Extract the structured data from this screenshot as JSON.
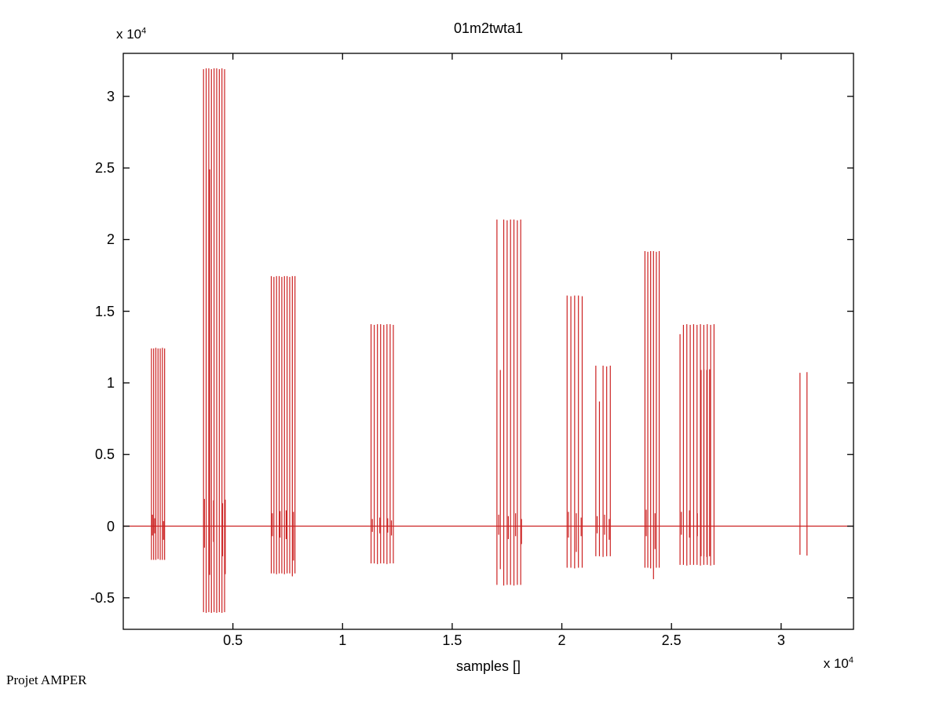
{
  "figure": {
    "background": "#ffffff",
    "footer_text": "Projet AMPER"
  },
  "chart_data": {
    "type": "line",
    "subtype": "waveform-spike-train",
    "title": "01m2twta1",
    "xlabel": "samples []",
    "ylabel": "",
    "x_scale_label": {
      "base": "x 10",
      "exp": "4"
    },
    "y_scale_label": {
      "base": "x 10",
      "exp": "4"
    },
    "xlim": [
      0,
      33300
    ],
    "ylim": [
      -7200,
      33000
    ],
    "xticks": {
      "values": [
        5000,
        10000,
        15000,
        20000,
        25000,
        30000
      ],
      "labels": [
        "0.5",
        "1",
        "1.5",
        "2",
        "2.5",
        "3"
      ]
    },
    "yticks": {
      "values": [
        -5000,
        0,
        5000,
        10000,
        15000,
        20000,
        25000,
        30000
      ],
      "labels": [
        "-0.5",
        "0",
        "0.5",
        "1",
        "1.5",
        "2",
        "2.5",
        "3"
      ]
    },
    "grid": false,
    "box": true,
    "legend": null,
    "line_color": "#cc2222",
    "axis_color": "#000000",
    "baseline_y": 0,
    "spikes_format": "[x_sample, y_max, y_min]",
    "spikes": [
      [
        1285,
        12400,
        -2350
      ],
      [
        1385,
        12400,
        -2350
      ],
      [
        1485,
        12450,
        -2350
      ],
      [
        1585,
        12400,
        -2300
      ],
      [
        1685,
        12400,
        -2350
      ],
      [
        1785,
        12450,
        -2350
      ],
      [
        1885,
        12400,
        -2350
      ],
      [
        1330,
        800,
        -650
      ],
      [
        1430,
        550,
        -500
      ],
      [
        1835,
        350,
        -950
      ],
      [
        3660,
        31900,
        -6000
      ],
      [
        3780,
        31950,
        -6050
      ],
      [
        3900,
        31950,
        -6000
      ],
      [
        4020,
        31900,
        -6050
      ],
      [
        4140,
        31950,
        -6000
      ],
      [
        4260,
        31950,
        -6050
      ],
      [
        4380,
        31900,
        -6000
      ],
      [
        4500,
        31950,
        -6050
      ],
      [
        4620,
        31900,
        -6000
      ],
      [
        3940,
        24900,
        -3400
      ],
      [
        3700,
        1900,
        -1500
      ],
      [
        4120,
        1800,
        -1100
      ],
      [
        4530,
        1600,
        -2100
      ],
      [
        4650,
        1850,
        -3350
      ],
      [
        6750,
        17450,
        -3300
      ],
      [
        6870,
        17400,
        -3300
      ],
      [
        6990,
        17450,
        -3350
      ],
      [
        7110,
        17450,
        -3300
      ],
      [
        7230,
        17400,
        -3300
      ],
      [
        7350,
        17450,
        -3350
      ],
      [
        7470,
        17450,
        -3300
      ],
      [
        7590,
        17400,
        -3300
      ],
      [
        7710,
        17450,
        -3500
      ],
      [
        7830,
        17450,
        -3300
      ],
      [
        6800,
        900,
        -700
      ],
      [
        7150,
        1050,
        -800
      ],
      [
        7430,
        1100,
        -900
      ],
      [
        7760,
        1000,
        -2400
      ],
      [
        11300,
        14100,
        -2600
      ],
      [
        11445,
        14050,
        -2600
      ],
      [
        11590,
        14100,
        -2650
      ],
      [
        11735,
        14100,
        -2600
      ],
      [
        11880,
        14050,
        -2600
      ],
      [
        12025,
        14100,
        -2650
      ],
      [
        12170,
        14100,
        -2600
      ],
      [
        12315,
        14050,
        -2600
      ],
      [
        11360,
        500,
        -400
      ],
      [
        11700,
        600,
        -500
      ],
      [
        12060,
        550,
        -450
      ],
      [
        12230,
        400,
        -650
      ],
      [
        17040,
        21400,
        -4100
      ],
      [
        17195,
        10900,
        -3000
      ],
      [
        17350,
        21400,
        -4150
      ],
      [
        17505,
        21350,
        -4100
      ],
      [
        17660,
        21400,
        -4100
      ],
      [
        17815,
        21400,
        -4150
      ],
      [
        17970,
        21350,
        -4100
      ],
      [
        18125,
        21400,
        -4100
      ],
      [
        17120,
        800,
        -600
      ],
      [
        17560,
        700,
        -900
      ],
      [
        17890,
        900,
        -700
      ],
      [
        18160,
        500,
        -1250
      ],
      [
        20240,
        16100,
        -2900
      ],
      [
        20412,
        16050,
        -2900
      ],
      [
        20584,
        16100,
        -2950
      ],
      [
        20756,
        16100,
        -2900
      ],
      [
        20928,
        16050,
        -2900
      ],
      [
        20300,
        1000,
        -800
      ],
      [
        20660,
        900,
        -1800
      ],
      [
        20880,
        600,
        -700
      ],
      [
        21550,
        11200,
        -2100
      ],
      [
        21715,
        8700,
        -2100
      ],
      [
        21880,
        11200,
        -2150
      ],
      [
        22045,
        11150,
        -2100
      ],
      [
        22210,
        11200,
        -2100
      ],
      [
        21610,
        700,
        -500
      ],
      [
        21950,
        800,
        -600
      ],
      [
        22160,
        500,
        -950
      ],
      [
        23790,
        19200,
        -2900
      ],
      [
        23920,
        19150,
        -2900
      ],
      [
        24050,
        19200,
        -2950
      ],
      [
        24180,
        19200,
        -3700
      ],
      [
        24310,
        19150,
        -2900
      ],
      [
        24440,
        19200,
        -2900
      ],
      [
        23850,
        1150,
        -700
      ],
      [
        24250,
        900,
        -1600
      ],
      [
        25390,
        13400,
        -2700
      ],
      [
        25545,
        14050,
        -2700
      ],
      [
        25700,
        14100,
        -2750
      ],
      [
        25855,
        14050,
        -2700
      ],
      [
        26010,
        14100,
        -2700
      ],
      [
        26165,
        14050,
        -2700
      ],
      [
        26320,
        14100,
        -2750
      ],
      [
        26475,
        14050,
        -2700
      ],
      [
        26630,
        14100,
        -2700
      ],
      [
        26785,
        14050,
        -2750
      ],
      [
        26940,
        14100,
        -2700
      ],
      [
        26350,
        10900,
        -2100
      ],
      [
        26480,
        10950,
        -2100
      ],
      [
        26610,
        10900,
        -2150
      ],
      [
        26740,
        10950,
        -2100
      ],
      [
        25450,
        1000,
        -600
      ],
      [
        25820,
        1100,
        -800
      ],
      [
        26180,
        900,
        -700
      ],
      [
        30860,
        10700,
        -2000
      ],
      [
        31180,
        10750,
        -2050
      ]
    ]
  }
}
